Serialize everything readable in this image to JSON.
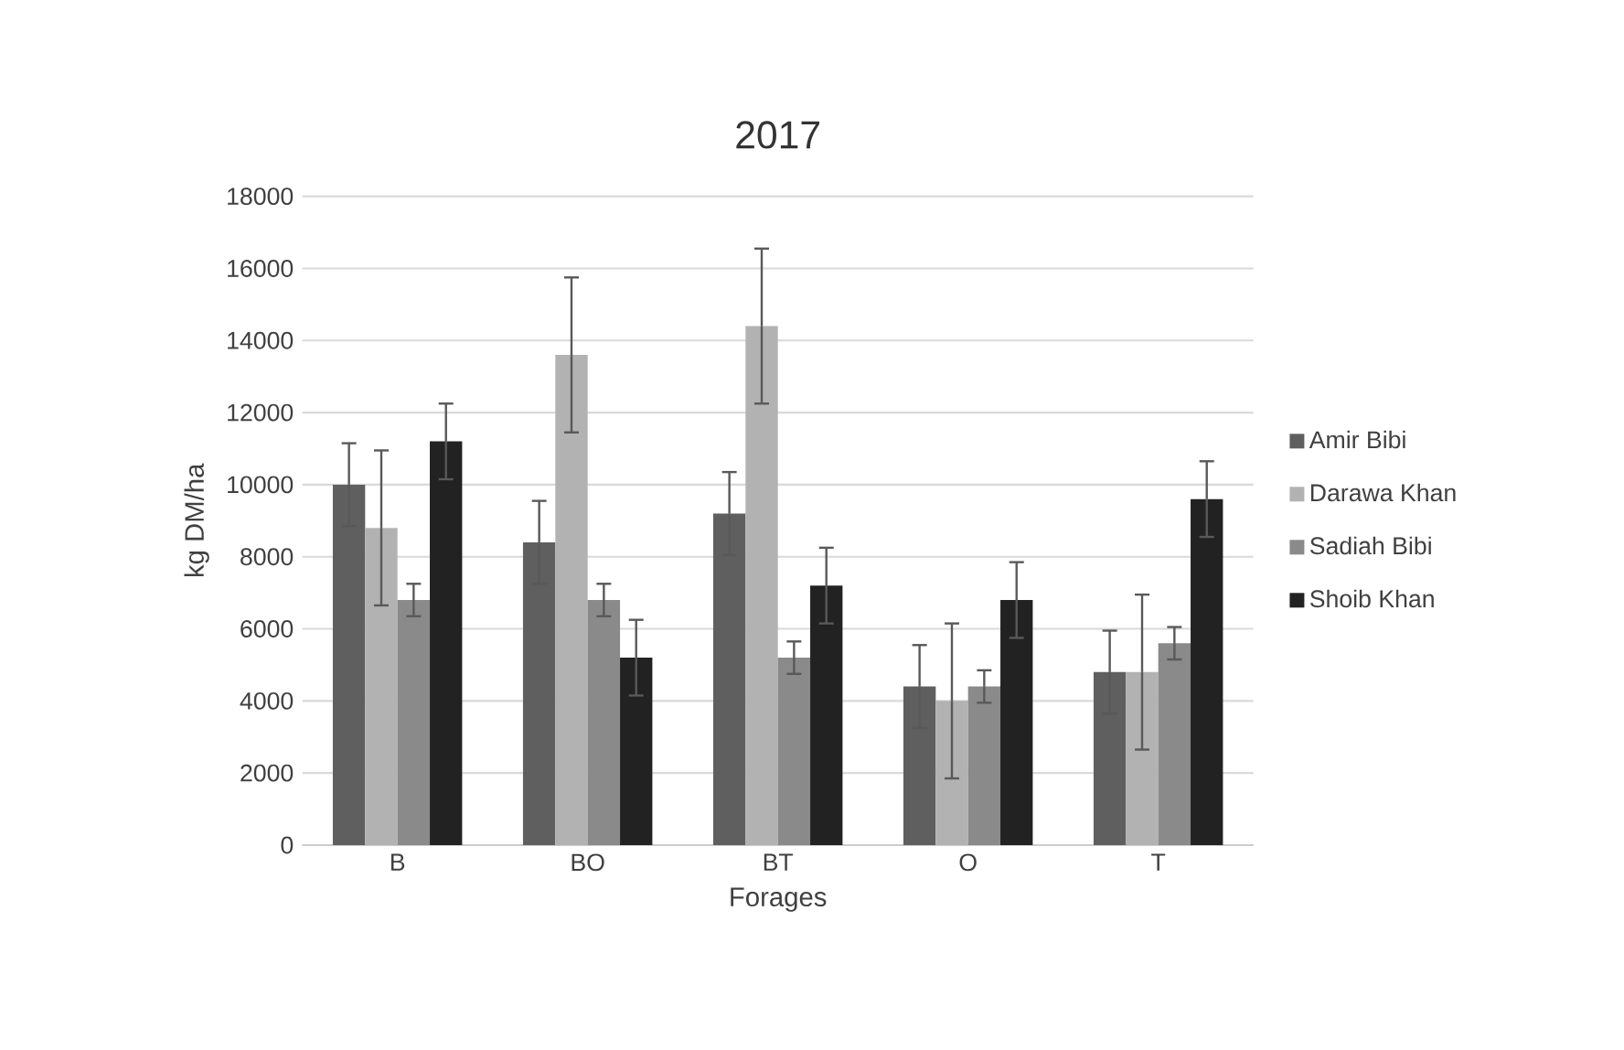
{
  "chart_data": {
    "type": "bar",
    "title": "2017",
    "xlabel": "Forages",
    "ylabel": "kg DM/ha",
    "categories": [
      "B",
      "BO",
      "BT",
      "O",
      "T"
    ],
    "series": [
      {
        "name": "Amir Bibi",
        "color": "#5f5f5f",
        "values": [
          10000,
          8400,
          9200,
          4400,
          4800
        ],
        "errors": [
          1150,
          1150,
          1150,
          1150,
          1150
        ]
      },
      {
        "name": "Darawa Khan",
        "color": "#b2b2b2",
        "values": [
          8800,
          13600,
          14400,
          4000,
          4800
        ],
        "errors": [
          2150,
          2150,
          2150,
          2150,
          2150
        ]
      },
      {
        "name": "Sadiah Bibi",
        "color": "#8a8a8a",
        "values": [
          6800,
          6800,
          5200,
          4400,
          5600
        ],
        "errors": [
          450,
          450,
          450,
          450,
          450
        ]
      },
      {
        "name": "Shoib Khan",
        "color": "#222222",
        "values": [
          11200,
          5200,
          7200,
          6800,
          9600
        ],
        "errors": [
          1050,
          1050,
          1050,
          1050,
          1050
        ]
      }
    ],
    "ylim": [
      0,
      18000
    ],
    "yticks": [
      0,
      2000,
      4000,
      6000,
      8000,
      10000,
      12000,
      14000,
      16000,
      18000
    ],
    "grid": "y",
    "legend": "right"
  }
}
